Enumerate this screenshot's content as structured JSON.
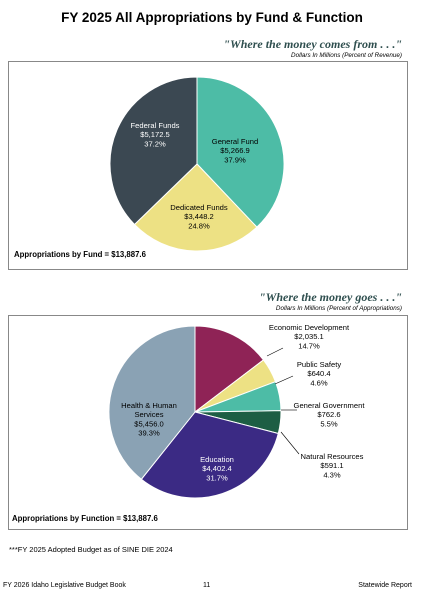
{
  "page": {
    "title": "FY 2025 All Appropriations by Fund & Function",
    "footnote": "***FY 2025 Adopted Budget as of SINE DIE 2024",
    "footer_left": "FY 2026 Idaho Legislative Budget Book",
    "footer_center": "11",
    "footer_right": "Statewide Report"
  },
  "chart_data": [
    {
      "type": "pie",
      "title": "\"Where the money comes from . . .\"",
      "subtitle": "Dollars In Millions (Percent of Revenue)",
      "total_label": "Appropriations by Fund = $13,887.6",
      "slices": [
        {
          "name": "General Fund",
          "value": 5266.9,
          "value_label": "$5,266.9",
          "percent_label": "37.9%",
          "color": "#4dbca6"
        },
        {
          "name": "Dedicated Funds",
          "value": 3448.2,
          "value_label": "$3,448.2",
          "percent_label": "24.8%",
          "color": "#ede184"
        },
        {
          "name": "Federal Funds",
          "value": 5172.5,
          "value_label": "$5,172.5",
          "percent_label": "37.2%",
          "color": "#3b4852"
        }
      ]
    },
    {
      "type": "pie",
      "title": "\"Where the money goes . . .\"",
      "subtitle": "Dollars In Millions (Percent of Appropriations)",
      "total_label": "Appropriations by Function = $13,887.6",
      "slices": [
        {
          "name": "Economic Development",
          "value": 2035.1,
          "value_label": "$2,035.1",
          "percent_label": "14.7%",
          "color": "#8f2356"
        },
        {
          "name": "Public Safety",
          "value": 640.4,
          "value_label": "$640.4",
          "percent_label": "4.6%",
          "color": "#ede184"
        },
        {
          "name": "General Government",
          "value": 762.6,
          "value_label": "$762.6",
          "percent_label": "5.5%",
          "color": "#4dbca6"
        },
        {
          "name": "Natural Resources",
          "value": 591.1,
          "value_label": "$591.1",
          "percent_label": "4.3%",
          "color": "#1d5e44"
        },
        {
          "name": "Education",
          "value": 4402.4,
          "value_label": "$4,402.4",
          "percent_label": "31.7%",
          "color": "#3b2a84"
        },
        {
          "name": "Health & Human Services",
          "name_lines": [
            "Health & Human",
            "Services"
          ],
          "value": 5456.0,
          "value_label": "$5,456.0",
          "percent_label": "39.3%",
          "color": "#8aa2b4"
        }
      ]
    }
  ]
}
